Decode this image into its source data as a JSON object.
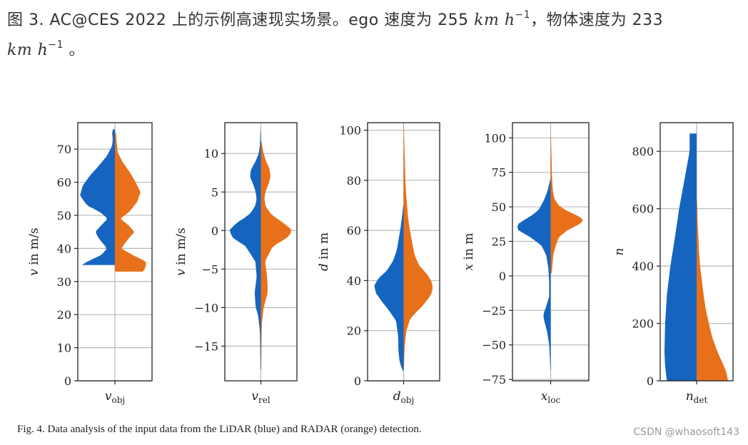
{
  "caption_cn": {
    "prefix": "图 3. AC@CES 2022 上的示例高速现实场景。ego 速度为 255",
    "unit_a": "km h",
    "exp_a": "−1",
    "middle": "，物体速度为 233",
    "unit_b": "km h",
    "exp_b": "−1",
    "suffix": " 。"
  },
  "fig_caption": "Fig. 4.  Data analysis of the input data from the LiDAR (blue) and RADAR (orange) detection.",
  "watermark": "CSDN @whaosoft143",
  "colors": {
    "lidar": "#1565c0",
    "radar": "#e8701a",
    "grid": "#b8b8b8",
    "axis": "#222222"
  },
  "chart_data": [
    {
      "type": "violin",
      "xtick": "v_obj",
      "xtick_main": "v",
      "xtick_sub": "obj",
      "ylabel": "v in m/s",
      "ylim": [
        0,
        78
      ],
      "yticks": [
        0,
        10,
        20,
        30,
        40,
        50,
        60,
        70
      ],
      "lidar": {
        "range": [
          35,
          76
        ],
        "profile": [
          [
            35,
            0.92
          ],
          [
            36,
            0.78
          ],
          [
            38,
            0.38
          ],
          [
            40,
            0.22
          ],
          [
            43,
            0.45
          ],
          [
            45,
            0.55
          ],
          [
            47,
            0.38
          ],
          [
            49,
            0.2
          ],
          [
            51,
            0.42
          ],
          [
            53,
            0.78
          ],
          [
            56,
            0.98
          ],
          [
            59,
            0.9
          ],
          [
            62,
            0.7
          ],
          [
            65,
            0.45
          ],
          [
            68,
            0.22
          ],
          [
            71,
            0.08
          ],
          [
            73,
            0.06
          ],
          [
            75,
            0.08
          ],
          [
            76,
            0.05
          ]
        ]
      },
      "radar": {
        "range": [
          33,
          75
        ],
        "profile": [
          [
            33,
            0.78
          ],
          [
            34,
            0.85
          ],
          [
            36,
            0.88
          ],
          [
            38,
            0.5
          ],
          [
            40,
            0.18
          ],
          [
            43,
            0.38
          ],
          [
            45,
            0.55
          ],
          [
            47,
            0.38
          ],
          [
            49,
            0.15
          ],
          [
            51,
            0.4
          ],
          [
            54,
            0.62
          ],
          [
            57,
            0.72
          ],
          [
            60,
            0.58
          ],
          [
            63,
            0.42
          ],
          [
            66,
            0.22
          ],
          [
            69,
            0.08
          ],
          [
            72,
            0.05
          ],
          [
            75,
            0.03
          ]
        ]
      }
    },
    {
      "type": "violin",
      "xtick": "v_rel",
      "xtick_main": "v",
      "xtick_sub": "rel",
      "ylabel": "v in m/s",
      "ylim": [
        -19.5,
        14
      ],
      "yticks": [
        -15,
        -10,
        -5,
        0,
        5,
        10
      ],
      "lidar": {
        "range": [
          -18,
          13
        ],
        "profile": [
          [
            -18,
            0.01
          ],
          [
            -15,
            0.02
          ],
          [
            -13,
            0.03
          ],
          [
            -11,
            0.08
          ],
          [
            -10,
            0.15
          ],
          [
            -8,
            0.18
          ],
          [
            -6,
            0.12
          ],
          [
            -4,
            0.16
          ],
          [
            -2,
            0.45
          ],
          [
            -1,
            0.8
          ],
          [
            0,
            0.92
          ],
          [
            1,
            0.7
          ],
          [
            2,
            0.35
          ],
          [
            3,
            0.18
          ],
          [
            4,
            0.12
          ],
          [
            5,
            0.15
          ],
          [
            6,
            0.22
          ],
          [
            7,
            0.32
          ],
          [
            8,
            0.28
          ],
          [
            9,
            0.15
          ],
          [
            10,
            0.06
          ],
          [
            11,
            0.03
          ],
          [
            13,
            0.01
          ]
        ]
      },
      "radar": {
        "range": [
          -18,
          11.5
        ],
        "profile": [
          [
            -18,
            0.01
          ],
          [
            -14,
            0.02
          ],
          [
            -12,
            0.03
          ],
          [
            -10,
            0.08
          ],
          [
            -8,
            0.2
          ],
          [
            -6,
            0.18
          ],
          [
            -4,
            0.12
          ],
          [
            -2,
            0.35
          ],
          [
            -1,
            0.75
          ],
          [
            0,
            0.92
          ],
          [
            1,
            0.65
          ],
          [
            2,
            0.32
          ],
          [
            3,
            0.15
          ],
          [
            4,
            0.1
          ],
          [
            5,
            0.13
          ],
          [
            6,
            0.22
          ],
          [
            7,
            0.28
          ],
          [
            8,
            0.25
          ],
          [
            9,
            0.15
          ],
          [
            10,
            0.08
          ],
          [
            11,
            0.04
          ],
          [
            11.5,
            0.02
          ]
        ]
      }
    },
    {
      "type": "violin",
      "xtick": "d_obj",
      "xtick_main": "d",
      "xtick_sub": "obj",
      "ylabel": "d in m",
      "ylim": [
        0,
        103
      ],
      "yticks": [
        0,
        20,
        40,
        60,
        80,
        100
      ],
      "lidar": {
        "range": [
          4,
          70
        ],
        "profile": [
          [
            4,
            0.02
          ],
          [
            6,
            0.08
          ],
          [
            8,
            0.12
          ],
          [
            12,
            0.15
          ],
          [
            18,
            0.16
          ],
          [
            24,
            0.22
          ],
          [
            28,
            0.42
          ],
          [
            32,
            0.65
          ],
          [
            35,
            0.8
          ],
          [
            38,
            0.85
          ],
          [
            41,
            0.72
          ],
          [
            44,
            0.48
          ],
          [
            48,
            0.3
          ],
          [
            52,
            0.2
          ],
          [
            56,
            0.15
          ],
          [
            60,
            0.1
          ],
          [
            65,
            0.05
          ],
          [
            70,
            0.01
          ]
        ]
      },
      "radar": {
        "range": [
          5,
          103
        ],
        "profile": [
          [
            5,
            0.01
          ],
          [
            10,
            0.02
          ],
          [
            15,
            0.04
          ],
          [
            20,
            0.08
          ],
          [
            25,
            0.2
          ],
          [
            30,
            0.55
          ],
          [
            34,
            0.78
          ],
          [
            37,
            0.85
          ],
          [
            40,
            0.8
          ],
          [
            43,
            0.65
          ],
          [
            46,
            0.45
          ],
          [
            50,
            0.32
          ],
          [
            55,
            0.25
          ],
          [
            60,
            0.18
          ],
          [
            65,
            0.13
          ],
          [
            70,
            0.1
          ],
          [
            75,
            0.07
          ],
          [
            80,
            0.05
          ],
          [
            85,
            0.04
          ],
          [
            90,
            0.03
          ],
          [
            95,
            0.02
          ],
          [
            100,
            0.01
          ],
          [
            103,
            0.005
          ]
        ]
      }
    },
    {
      "type": "violin",
      "xtick": "x_loc",
      "xtick_main": "x",
      "xtick_sub": "loc",
      "ylabel": "x in m",
      "ylim": [
        -76,
        111
      ],
      "yticks": [
        -75,
        -50,
        -25,
        0,
        25,
        50,
        75,
        100
      ],
      "lidar": {
        "range": [
          -68,
          70
        ],
        "profile": [
          [
            -68,
            0.01
          ],
          [
            -60,
            0.02
          ],
          [
            -50,
            0.04
          ],
          [
            -40,
            0.1
          ],
          [
            -32,
            0.18
          ],
          [
            -28,
            0.2
          ],
          [
            -22,
            0.12
          ],
          [
            -15,
            0.04
          ],
          [
            -5,
            0.04
          ],
          [
            0,
            0.05
          ],
          [
            5,
            0.06
          ],
          [
            15,
            0.12
          ],
          [
            22,
            0.25
          ],
          [
            28,
            0.55
          ],
          [
            33,
            0.88
          ],
          [
            37,
            0.92
          ],
          [
            40,
            0.75
          ],
          [
            44,
            0.5
          ],
          [
            48,
            0.32
          ],
          [
            55,
            0.18
          ],
          [
            62,
            0.08
          ],
          [
            70,
            0.01
          ]
        ]
      },
      "radar": {
        "range": [
          2,
          103
        ],
        "profile": [
          [
            2,
            0.03
          ],
          [
            8,
            0.05
          ],
          [
            15,
            0.07
          ],
          [
            22,
            0.14
          ],
          [
            28,
            0.22
          ],
          [
            33,
            0.45
          ],
          [
            37,
            0.75
          ],
          [
            40,
            0.9
          ],
          [
            43,
            0.78
          ],
          [
            47,
            0.45
          ],
          [
            51,
            0.22
          ],
          [
            56,
            0.1
          ],
          [
            62,
            0.06
          ],
          [
            70,
            0.04
          ],
          [
            80,
            0.03
          ],
          [
            90,
            0.02
          ],
          [
            100,
            0.01
          ],
          [
            103,
            0.005
          ]
        ]
      }
    },
    {
      "type": "violin",
      "xtick": "n_det",
      "xtick_main": "n",
      "xtick_sub": "det",
      "ylabel": "n",
      "ylim": [
        0,
        900
      ],
      "yticks": [
        0,
        200,
        400,
        600,
        800
      ],
      "lidar": {
        "range": [
          0,
          862
        ],
        "profile": [
          [
            0,
            0.85
          ],
          [
            50,
            0.9
          ],
          [
            100,
            0.92
          ],
          [
            200,
            0.9
          ],
          [
            300,
            0.85
          ],
          [
            400,
            0.75
          ],
          [
            500,
            0.62
          ],
          [
            600,
            0.5
          ],
          [
            700,
            0.35
          ],
          [
            800,
            0.2
          ],
          [
            862,
            0.2
          ]
        ]
      },
      "radar": {
        "range": [
          0,
          632
        ],
        "profile": [
          [
            0,
            0.9
          ],
          [
            30,
            0.85
          ],
          [
            60,
            0.75
          ],
          [
            100,
            0.6
          ],
          [
            150,
            0.45
          ],
          [
            200,
            0.35
          ],
          [
            250,
            0.26
          ],
          [
            300,
            0.2
          ],
          [
            350,
            0.15
          ],
          [
            400,
            0.1
          ],
          [
            450,
            0.07
          ],
          [
            500,
            0.05
          ],
          [
            550,
            0.03
          ],
          [
            600,
            0.02
          ],
          [
            632,
            0.01
          ]
        ]
      }
    }
  ]
}
